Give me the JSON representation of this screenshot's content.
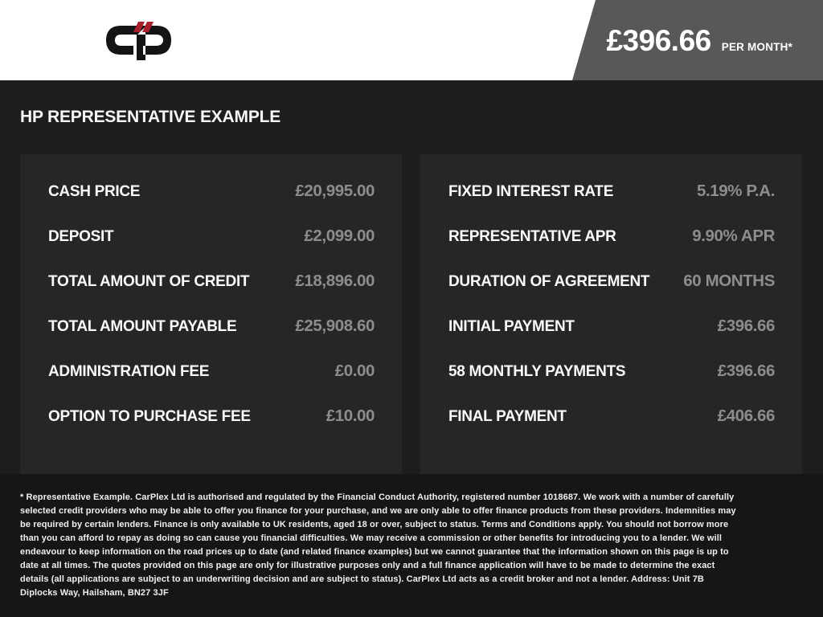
{
  "header": {
    "logo": "carplex-logo",
    "price_per_month": "£396.66",
    "price_suffix": "PER MONTH*",
    "banner_color": "#58585a",
    "logo_red": "#a81f2d",
    "logo_black": "#141414"
  },
  "section_title": "HP REPRESENTATIVE EXAMPLE",
  "finance_example": {
    "left_panel": {
      "rows": [
        {
          "label": "CASH PRICE",
          "value": "£20,995.00"
        },
        {
          "label": "DEPOSIT",
          "value": "£2,099.00"
        },
        {
          "label": "TOTAL AMOUNT OF CREDIT",
          "value": "£18,896.00"
        },
        {
          "label": "TOTAL AMOUNT PAYABLE",
          "value": "£25,908.60"
        },
        {
          "label": "ADMINISTRATION FEE",
          "value": "£0.00"
        },
        {
          "label": "OPTION TO PURCHASE FEE",
          "value": "£10.00"
        }
      ]
    },
    "right_panel": {
      "rows": [
        {
          "label": "FIXED INTEREST RATE",
          "value": "5.19% P.A."
        },
        {
          "label": "REPRESENTATIVE APR",
          "value": "9.90% APR"
        },
        {
          "label": "DURATION OF AGREEMENT",
          "value": "60 MONTHS"
        },
        {
          "label": "INITIAL PAYMENT",
          "value": "£396.66"
        },
        {
          "label": "58 MONTHLY PAYMENTS",
          "value": "£396.66"
        },
        {
          "label": "FINAL PAYMENT",
          "value": "£406.66"
        }
      ]
    }
  },
  "footer": {
    "disclaimer": "* Representative Example. CarPlex Ltd is authorised and regulated by the Financial Conduct Authority, registered number 1018687. We work with a number of carefully selected credit providers who may be able to offer you finance for your purchase, and we are only able to offer finance products from these providers. Indemnities may be required by certain lenders. Finance is only available to UK residents, aged 18 or over, subject to status. Terms and Conditions apply. You should not borrow more than you can afford to repay as doing so can cause you financial difficulties. We may receive a commission or other benefits for introducing you to a lender. We will endeavour to keep information on the road prices up to date (and related finance examples) but we cannot guarantee that the information shown on this page is up to date at all times. The quotes provided on this page are only for illustrative purposes only and a full finance application will have to be made to determine the exact details (all applications are subject to an underwriting decision and are subject to status). CarPlex Ltd acts as a credit broker and not a lender. Address: Unit 7B Diplocks Way, Hailsham, BN27 3JF"
  },
  "colors": {
    "page_background": "#1e1e1e",
    "panel_background": "#262626",
    "footer_background": "#161616",
    "header_background": "#ffffff",
    "label_text": "#fafafa",
    "value_text": "#8d8d8d"
  }
}
